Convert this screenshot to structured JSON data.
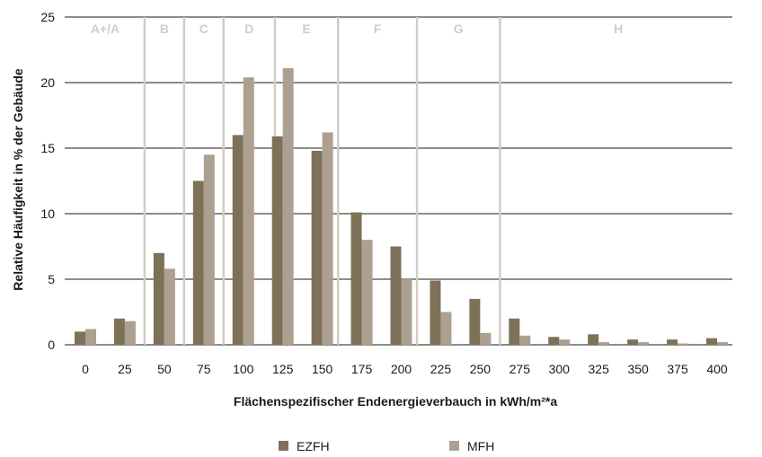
{
  "chart_data": {
    "type": "bar",
    "xlabel": "Flächenspezifischer Endenergieverbauch in kWh/m²*a",
    "ylabel": "Relative Häufigkeit in % der Gebäude",
    "ylim": [
      0,
      25
    ],
    "yticks": [
      0,
      5,
      10,
      15,
      20,
      25
    ],
    "categories": [
      "0",
      "25",
      "50",
      "75",
      "100",
      "125",
      "150",
      "175",
      "200",
      "225",
      "250",
      "275",
      "300",
      "325",
      "350",
      "375",
      "400"
    ],
    "series": [
      {
        "name": "EZFH",
        "color": "#7d7158",
        "values": [
          1.0,
          2.0,
          7.0,
          12.5,
          16.0,
          15.9,
          14.8,
          10.1,
          7.5,
          4.9,
          3.5,
          2.0,
          0.6,
          0.8,
          0.4,
          0.4,
          0.5
        ]
      },
      {
        "name": "MFH",
        "color": "#aea090",
        "values": [
          1.2,
          1.8,
          5.8,
          14.5,
          20.4,
          21.1,
          16.2,
          8.0,
          5.0,
          2.5,
          0.9,
          0.7,
          0.4,
          0.2,
          0.2,
          0.1,
          0.2
        ]
      }
    ],
    "efficiency_classes": [
      {
        "label": "A+/A",
        "from": -12.5,
        "to": 37.5
      },
      {
        "label": "B",
        "from": 37.5,
        "to": 62.5
      },
      {
        "label": "C",
        "from": 62.5,
        "to": 87.5
      },
      {
        "label": "D",
        "from": 87.5,
        "to": 120
      },
      {
        "label": "E",
        "from": 120,
        "to": 160
      },
      {
        "label": "F",
        "from": 160,
        "to": 210
      },
      {
        "label": "G",
        "from": 210,
        "to": 262.5
      },
      {
        "label": "H",
        "from": 262.5,
        "to": 412.5
      }
    ],
    "class_boundaries": [
      37.5,
      62.5,
      87.5,
      120,
      160,
      210,
      262.5
    ],
    "grid": true,
    "legend_position": "bottom-center",
    "colors": {
      "grid": "#1a1a1a",
      "class_lines": "#d4ccc3",
      "class_labels": "#d4ccc3"
    }
  }
}
